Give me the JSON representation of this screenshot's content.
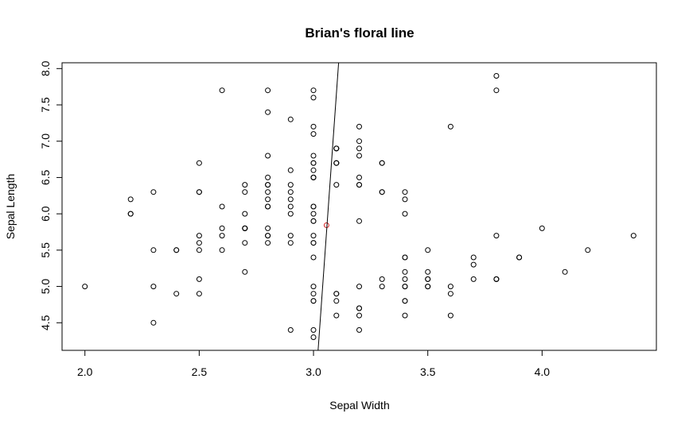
{
  "chart_data": {
    "type": "scatter",
    "title": "Brian's floral line",
    "xlabel": "Sepal Width",
    "ylabel": "Sepal Length",
    "xlim": [
      1.9,
      4.5
    ],
    "ylim": [
      4.12,
      8.08
    ],
    "x_ticks": [
      "2.0",
      "2.5",
      "3.0",
      "3.5",
      "4.0"
    ],
    "y_ticks": [
      "4.5",
      "5.0",
      "5.5",
      "6.0",
      "6.5",
      "7.0",
      "7.5",
      "8.0"
    ],
    "grid": false,
    "point_color": "#000000",
    "highlight_color": "#d62728",
    "line_color": "#000000",
    "points": [
      [
        3.5,
        5.1
      ],
      [
        3.0,
        4.9
      ],
      [
        3.2,
        4.7
      ],
      [
        3.1,
        4.6
      ],
      [
        3.6,
        5.0
      ],
      [
        3.9,
        5.4
      ],
      [
        3.4,
        4.6
      ],
      [
        3.4,
        5.0
      ],
      [
        2.9,
        4.4
      ],
      [
        3.1,
        4.9
      ],
      [
        3.7,
        5.4
      ],
      [
        3.4,
        4.8
      ],
      [
        3.0,
        4.8
      ],
      [
        3.0,
        4.3
      ],
      [
        4.0,
        5.8
      ],
      [
        4.4,
        5.7
      ],
      [
        3.9,
        5.4
      ],
      [
        3.5,
        5.1
      ],
      [
        3.8,
        5.7
      ],
      [
        3.8,
        5.1
      ],
      [
        3.4,
        5.4
      ],
      [
        3.7,
        5.1
      ],
      [
        3.6,
        4.6
      ],
      [
        3.3,
        5.1
      ],
      [
        3.4,
        4.8
      ],
      [
        3.0,
        5.0
      ],
      [
        3.4,
        5.0
      ],
      [
        3.5,
        5.2
      ],
      [
        3.4,
        5.2
      ],
      [
        3.2,
        4.7
      ],
      [
        3.1,
        4.8
      ],
      [
        3.4,
        5.4
      ],
      [
        4.1,
        5.2
      ],
      [
        4.2,
        5.5
      ],
      [
        3.1,
        4.9
      ],
      [
        3.2,
        5.0
      ],
      [
        3.5,
        5.5
      ],
      [
        3.6,
        4.9
      ],
      [
        3.0,
        4.4
      ],
      [
        3.4,
        5.1
      ],
      [
        3.5,
        5.0
      ],
      [
        2.3,
        4.5
      ],
      [
        3.2,
        4.4
      ],
      [
        3.5,
        5.0
      ],
      [
        3.8,
        5.1
      ],
      [
        3.0,
        4.8
      ],
      [
        3.8,
        5.1
      ],
      [
        3.2,
        4.6
      ],
      [
        3.7,
        5.3
      ],
      [
        3.3,
        5.0
      ],
      [
        3.2,
        7.0
      ],
      [
        3.2,
        6.4
      ],
      [
        3.1,
        6.9
      ],
      [
        2.3,
        5.5
      ],
      [
        2.8,
        6.5
      ],
      [
        2.8,
        5.7
      ],
      [
        3.3,
        6.3
      ],
      [
        2.4,
        4.9
      ],
      [
        2.9,
        6.6
      ],
      [
        2.7,
        5.2
      ],
      [
        2.0,
        5.0
      ],
      [
        3.0,
        5.9
      ],
      [
        2.2,
        6.0
      ],
      [
        2.9,
        6.1
      ],
      [
        2.9,
        5.6
      ],
      [
        3.1,
        6.7
      ],
      [
        3.0,
        5.6
      ],
      [
        2.7,
        5.8
      ],
      [
        2.2,
        6.2
      ],
      [
        2.5,
        5.6
      ],
      [
        3.2,
        5.9
      ],
      [
        2.8,
        6.1
      ],
      [
        2.5,
        6.3
      ],
      [
        2.8,
        6.1
      ],
      [
        2.9,
        6.4
      ],
      [
        3.0,
        6.6
      ],
      [
        2.8,
        6.8
      ],
      [
        3.0,
        6.7
      ],
      [
        2.9,
        6.0
      ],
      [
        2.6,
        5.7
      ],
      [
        2.4,
        5.5
      ],
      [
        2.4,
        5.5
      ],
      [
        2.7,
        5.8
      ],
      [
        2.7,
        6.0
      ],
      [
        3.0,
        5.4
      ],
      [
        3.4,
        6.0
      ],
      [
        3.1,
        6.7
      ],
      [
        2.3,
        6.3
      ],
      [
        3.0,
        5.6
      ],
      [
        2.5,
        5.5
      ],
      [
        2.6,
        5.5
      ],
      [
        3.0,
        6.1
      ],
      [
        2.6,
        5.8
      ],
      [
        2.3,
        5.0
      ],
      [
        2.7,
        5.6
      ],
      [
        3.0,
        5.7
      ],
      [
        2.9,
        5.7
      ],
      [
        2.9,
        6.2
      ],
      [
        2.5,
        5.1
      ],
      [
        2.8,
        5.7
      ],
      [
        3.3,
        6.3
      ],
      [
        2.7,
        5.8
      ],
      [
        3.0,
        7.1
      ],
      [
        2.9,
        6.3
      ],
      [
        3.0,
        6.5
      ],
      [
        3.0,
        7.6
      ],
      [
        2.5,
        4.9
      ],
      [
        2.9,
        7.3
      ],
      [
        2.5,
        6.7
      ],
      [
        3.6,
        7.2
      ],
      [
        3.2,
        6.5
      ],
      [
        2.7,
        6.4
      ],
      [
        3.0,
        6.8
      ],
      [
        2.5,
        5.7
      ],
      [
        2.8,
        5.8
      ],
      [
        3.2,
        6.4
      ],
      [
        3.0,
        6.5
      ],
      [
        3.8,
        7.7
      ],
      [
        2.6,
        7.7
      ],
      [
        2.2,
        6.0
      ],
      [
        3.2,
        6.9
      ],
      [
        2.8,
        5.6
      ],
      [
        2.8,
        7.7
      ],
      [
        2.7,
        6.3
      ],
      [
        3.3,
        6.7
      ],
      [
        3.2,
        7.2
      ],
      [
        2.8,
        6.2
      ],
      [
        3.0,
        6.1
      ],
      [
        2.8,
        6.4
      ],
      [
        3.0,
        7.2
      ],
      [
        2.8,
        7.4
      ],
      [
        3.8,
        7.9
      ],
      [
        2.8,
        6.4
      ],
      [
        2.8,
        6.3
      ],
      [
        2.6,
        6.1
      ],
      [
        3.0,
        7.7
      ],
      [
        3.4,
        6.3
      ],
      [
        3.1,
        6.4
      ],
      [
        3.0,
        6.0
      ],
      [
        3.1,
        6.9
      ],
      [
        3.1,
        6.7
      ],
      [
        3.1,
        6.9
      ],
      [
        2.7,
        5.8
      ],
      [
        3.2,
        6.8
      ],
      [
        3.3,
        6.7
      ],
      [
        3.0,
        6.7
      ],
      [
        2.5,
        6.3
      ],
      [
        3.0,
        6.5
      ],
      [
        3.4,
        6.2
      ],
      [
        3.0,
        5.9
      ]
    ],
    "highlight_point": [
      3.057,
      5.843
    ],
    "line": {
      "from": [
        3.02,
        4.12
      ],
      "to": [
        3.11,
        8.08
      ]
    }
  }
}
